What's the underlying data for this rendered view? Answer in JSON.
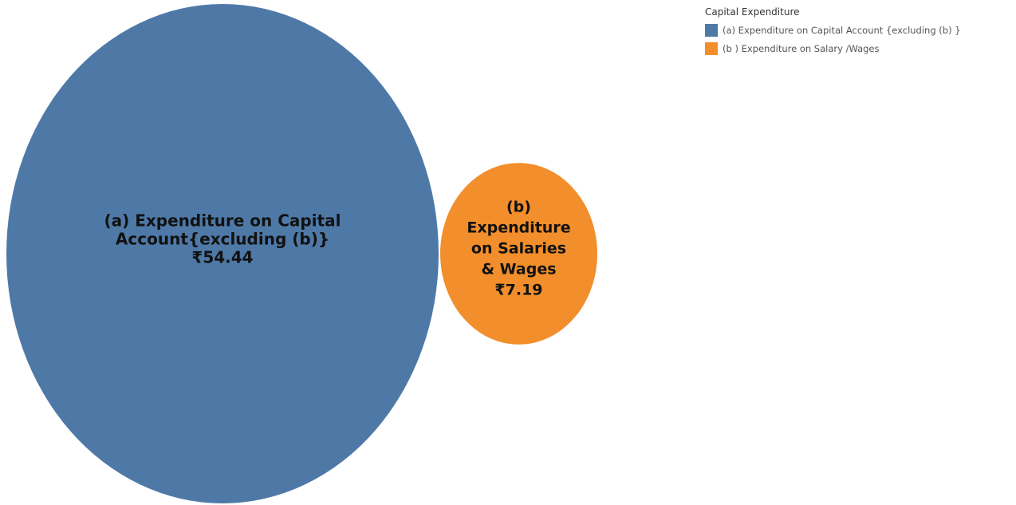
{
  "legend": {
    "title": "Capital Expenditure",
    "items": [
      {
        "label": "(a) Expenditure on Capital Account {excluding (b) }",
        "color": "#4e79a7"
      },
      {
        "label": "(b ) Expenditure on Salary /Wages",
        "color": "#f28e2b"
      }
    ]
  },
  "chart_data": {
    "type": "bubble",
    "title": "",
    "currency_symbol": "₹",
    "series": [
      {
        "name": "(a) Expenditure on Capital Account {excluding (b) }",
        "category_label_lines": [
          "(a) Expenditure on Capital",
          "Account{excluding (b)}"
        ],
        "value": 54.44,
        "value_label": "₹54.44",
        "color": "#4e79a7"
      },
      {
        "name": "(b ) Expenditure on Salary /Wages",
        "category_label_lines": [
          "(b)",
          "Expenditure",
          "on Salaries",
          "& Wages"
        ],
        "value": 7.19,
        "value_label": "₹7.19",
        "color": "#f28e2b"
      }
    ]
  }
}
